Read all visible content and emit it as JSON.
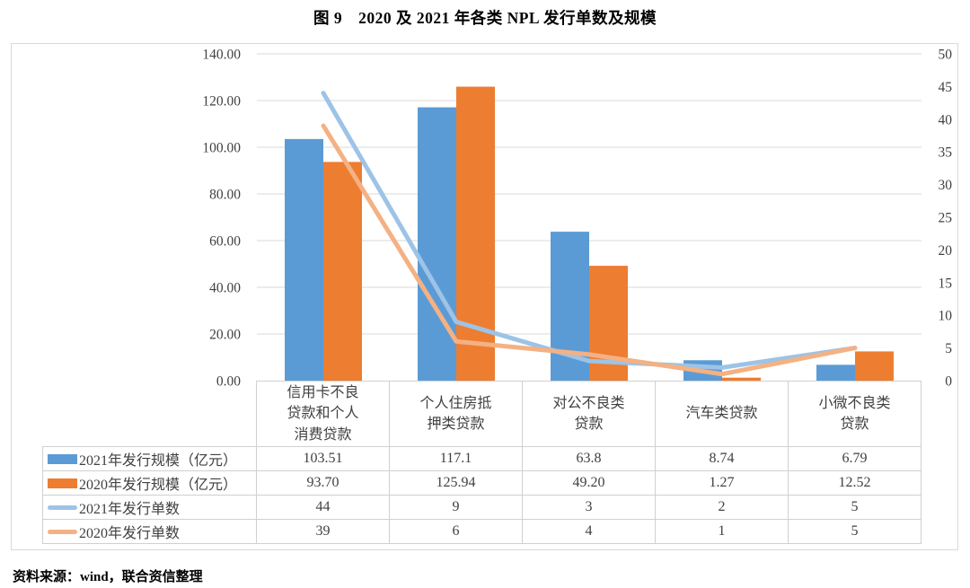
{
  "title": "图 9　2020 及 2021 年各类 NPL 发行单数及规模",
  "source": "资料来源：wind，联合资信整理",
  "chart_data": {
    "type": "bar+line combo with data table",
    "title": "图 9　2020 及 2021 年各类 NPL 发行单数及规模",
    "categories": [
      "信用卡不良贷款和个人消费贷款",
      "个人住房抵押类贷款",
      "对公不良类贷款",
      "汽车类贷款",
      "小微不良类贷款"
    ],
    "categories_display": [
      "信用卡不良\n贷款和个人\n消费贷款",
      "个人住房抵\n押类贷款",
      "对公不良类\n贷款",
      "汽车类贷款",
      "小微不良类\n贷款"
    ],
    "series": [
      {
        "name": "2021年发行规模（亿元）",
        "type": "bar",
        "axis": "left",
        "color": "#5B9BD5",
        "values": [
          103.51,
          117.1,
          63.8,
          8.74,
          6.79
        ],
        "labels": [
          "103.51",
          "117.1",
          "63.8",
          "8.74",
          "6.79"
        ]
      },
      {
        "name": "2020年发行规模（亿元）",
        "type": "bar",
        "axis": "left",
        "color": "#ED7D31",
        "values": [
          93.7,
          125.94,
          49.2,
          1.27,
          12.52
        ],
        "labels": [
          "93.70",
          "125.94",
          "49.20",
          "1.27",
          "12.52"
        ]
      },
      {
        "name": "2021年发行单数",
        "type": "line",
        "axis": "right",
        "color": "#9DC3E6",
        "values": [
          44,
          9,
          3,
          2,
          5
        ],
        "labels": [
          "44",
          "9",
          "3",
          "2",
          "5"
        ]
      },
      {
        "name": "2020年发行单数",
        "type": "line",
        "axis": "right",
        "color": "#F4B183",
        "values": [
          39,
          6,
          4,
          1,
          5
        ],
        "labels": [
          "39",
          "6",
          "4",
          "1",
          "5"
        ]
      }
    ],
    "left_axis": {
      "min": 0,
      "max": 140,
      "ticks": [
        "0.00",
        "20.00",
        "40.00",
        "60.00",
        "80.00",
        "100.00",
        "120.00",
        "140.00"
      ]
    },
    "right_axis": {
      "min": 0,
      "max": 50,
      "ticks": [
        "0",
        "5",
        "10",
        "15",
        "20",
        "25",
        "30",
        "35",
        "40",
        "45",
        "50"
      ]
    },
    "grid": "horizontal only",
    "legend_position": "data table left column",
    "gridline_color": "#D9D9D9",
    "table_border_color": "#D0D0D0"
  }
}
